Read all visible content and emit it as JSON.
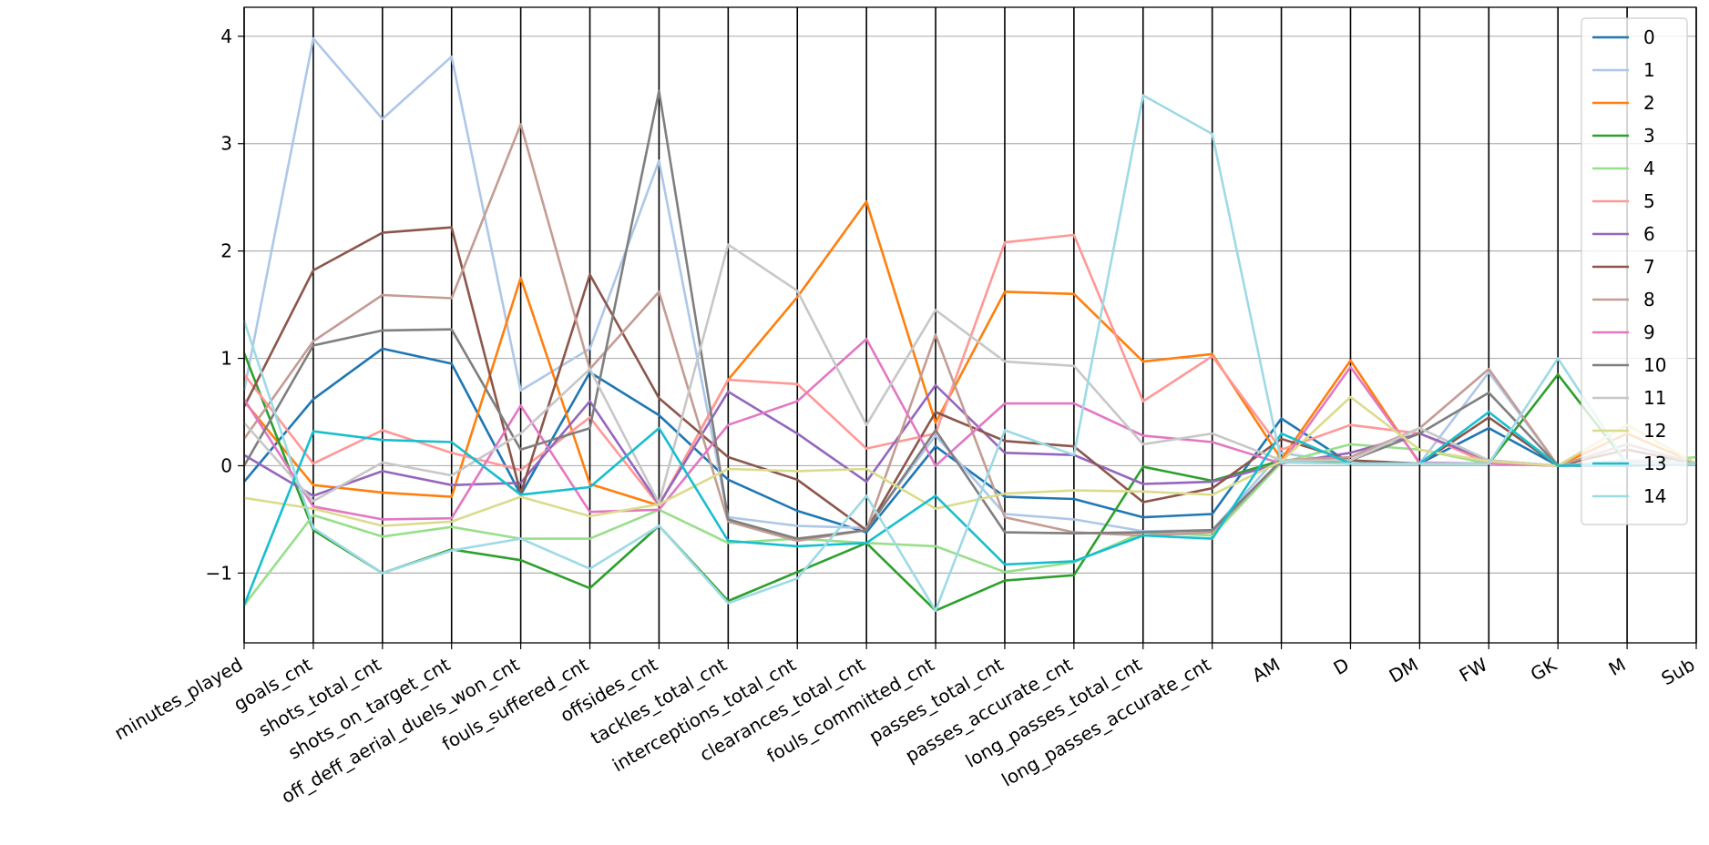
{
  "chart_data": {
    "type": "line",
    "title": "",
    "xlabel": "",
    "ylabel": "",
    "ylim": [
      -1.65,
      4.27
    ],
    "yticks": [
      -1,
      0,
      1,
      2,
      3,
      4
    ],
    "grid": "horizontal",
    "legend_position": "top-right",
    "categories": [
      "minutes_played",
      "goals_cnt",
      "shots_total_cnt",
      "shots_on_target_cnt",
      "off_deff_aerial_duels_won_cnt",
      "fouls_suffered_cnt",
      "offsides_cnt",
      "tackles_total_cnt",
      "interceptions_total_cnt",
      "clearances_total_cnt",
      "fouls_committed_cnt",
      "passes_total_cnt",
      "passes_accurate_cnt",
      "long_passes_total_cnt",
      "long_passes_accurate_cnt",
      "AM",
      "D",
      "DM",
      "FW",
      "GK",
      "M",
      "Sub"
    ],
    "series": [
      {
        "name": "0",
        "color": "#1f77b4",
        "values": [
          -0.15,
          0.62,
          1.09,
          0.95,
          -0.27,
          0.87,
          0.47,
          -0.13,
          -0.42,
          -0.62,
          0.18,
          -0.29,
          -0.31,
          -0.48,
          -0.45,
          0.44,
          0.02,
          0.02,
          0.35,
          0.0,
          0.0,
          0.02
        ]
      },
      {
        "name": "1",
        "color": "#aec7e8",
        "values": [
          0.7,
          3.98,
          3.23,
          3.81,
          0.7,
          1.09,
          2.84,
          -0.48,
          -0.56,
          -0.58,
          0.28,
          -0.45,
          -0.5,
          -0.61,
          -0.6,
          0.12,
          0.02,
          0.02,
          0.87,
          0.0,
          0.05,
          0.02
        ]
      },
      {
        "name": "2",
        "color": "#ff7f0e",
        "values": [
          0.6,
          -0.18,
          -0.25,
          -0.29,
          1.75,
          -0.17,
          -0.37,
          0.8,
          1.57,
          2.46,
          0.4,
          1.62,
          1.6,
          0.97,
          1.04,
          0.06,
          0.98,
          0.02,
          0.02,
          0.0,
          0.3,
          0.02
        ]
      },
      {
        "name": "3",
        "color": "#2ca02c",
        "values": [
          1.05,
          -0.6,
          -1.0,
          -0.78,
          -0.88,
          -1.14,
          -0.56,
          -1.26,
          -0.99,
          -0.72,
          -1.35,
          -1.07,
          -1.02,
          -0.01,
          -0.14,
          0.05,
          0.02,
          0.02,
          0.02,
          0.85,
          0.02,
          0.02
        ]
      },
      {
        "name": "4",
        "color": "#98df8a",
        "values": [
          -1.3,
          -0.46,
          -0.66,
          -0.57,
          -0.68,
          -0.68,
          -0.41,
          -0.72,
          -0.68,
          -0.72,
          -0.75,
          -0.99,
          -0.9,
          -0.62,
          -0.65,
          0.03,
          0.2,
          0.15,
          0.02,
          0.0,
          0.02,
          0.08
        ]
      },
      {
        "name": "5",
        "color": "#ff9896",
        "values": [
          0.85,
          0.02,
          0.33,
          0.12,
          -0.04,
          0.45,
          -0.37,
          0.8,
          0.76,
          0.16,
          0.3,
          2.08,
          2.15,
          0.6,
          1.02,
          0.15,
          0.38,
          0.3,
          0.02,
          0.0,
          0.38,
          0.02
        ]
      },
      {
        "name": "6",
        "color": "#9467bd",
        "values": [
          0.1,
          -0.28,
          -0.05,
          -0.18,
          -0.16,
          0.6,
          -0.36,
          0.69,
          0.3,
          -0.15,
          0.75,
          0.12,
          0.1,
          -0.17,
          -0.15,
          0.02,
          0.12,
          0.3,
          0.05,
          0.0,
          0.05,
          0.02
        ]
      },
      {
        "name": "7",
        "color": "#8c564b",
        "values": [
          0.55,
          1.82,
          2.17,
          2.22,
          -0.26,
          1.78,
          0.63,
          0.08,
          -0.13,
          -0.6,
          0.5,
          0.23,
          0.18,
          -0.34,
          -0.21,
          0.25,
          0.05,
          0.02,
          0.45,
          0.0,
          0.15,
          0.02
        ]
      },
      {
        "name": "8",
        "color": "#c49c94",
        "values": [
          0.25,
          1.16,
          1.59,
          1.56,
          3.18,
          0.9,
          1.62,
          -0.52,
          -0.7,
          -0.6,
          1.22,
          -0.48,
          -0.62,
          -0.65,
          -0.62,
          0.05,
          0.08,
          0.35,
          0.9,
          0.0,
          0.2,
          0.02
        ]
      },
      {
        "name": "9",
        "color": "#e377c2",
        "values": [
          0.62,
          -0.38,
          -0.5,
          -0.49,
          0.56,
          -0.43,
          -0.41,
          0.38,
          0.6,
          1.18,
          0.0,
          0.58,
          0.58,
          0.28,
          0.22,
          0.02,
          0.92,
          0.03,
          0.02,
          0.0,
          0.03,
          0.02
        ]
      },
      {
        "name": "10",
        "color": "#7f7f7f",
        "values": [
          0.0,
          1.12,
          1.26,
          1.27,
          0.15,
          0.35,
          3.49,
          -0.5,
          -0.68,
          -0.6,
          0.33,
          -0.62,
          -0.63,
          -0.62,
          -0.6,
          0.05,
          0.05,
          0.3,
          0.68,
          0.0,
          0.05,
          0.02
        ]
      },
      {
        "name": "11",
        "color": "#c7c7c7",
        "values": [
          0.4,
          -0.33,
          0.03,
          -0.09,
          0.3,
          0.9,
          -0.35,
          2.06,
          1.63,
          0.38,
          1.45,
          0.97,
          0.93,
          0.2,
          0.3,
          0.05,
          0.05,
          0.35,
          0.05,
          0.0,
          0.05,
          0.02
        ]
      },
      {
        "name": "12",
        "color": "#dbdb8d",
        "values": [
          -0.3,
          -0.4,
          -0.56,
          -0.52,
          -0.29,
          -0.47,
          -0.36,
          -0.03,
          -0.05,
          -0.03,
          -0.4,
          -0.26,
          -0.23,
          -0.24,
          -0.27,
          0.04,
          0.64,
          0.15,
          0.04,
          0.0,
          0.38,
          0.02
        ]
      },
      {
        "name": "13",
        "color": "#17becf",
        "values": [
          -1.3,
          0.32,
          0.24,
          0.22,
          -0.27,
          -0.2,
          0.35,
          -0.7,
          -0.75,
          -0.72,
          -0.28,
          -0.92,
          -0.89,
          -0.65,
          -0.68,
          0.3,
          0.02,
          0.02,
          0.5,
          0.0,
          0.02,
          0.02
        ]
      },
      {
        "name": "14",
        "color": "#9edae5",
        "values": [
          1.35,
          -0.58,
          -1.0,
          -0.79,
          -0.68,
          -0.96,
          -0.56,
          -1.28,
          -1.05,
          -0.28,
          -1.35,
          0.33,
          0.1,
          3.45,
          3.09,
          0.03,
          0.02,
          0.02,
          0.02,
          1.0,
          0.02,
          0.02
        ]
      }
    ]
  }
}
